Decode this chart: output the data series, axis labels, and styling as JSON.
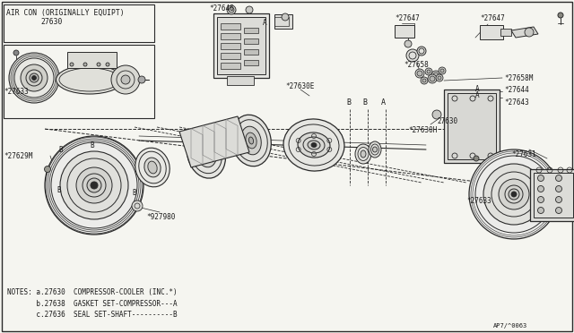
{
  "bg_color": "#f5f5f0",
  "line_color": "#2a2a2a",
  "text_color": "#1a1a1a",
  "title_text": "AIR CON (ORIGINALLY EQUIPT)",
  "title_part": "27630",
  "notes": [
    "NOTES: a.27630  COMPRESSOR-COOLER (INC.*)",
    "       b.27638  GASKET SET-COMPRESSOR---A",
    "       c.27636  SEAL SET-SHAFT----------B"
  ],
  "diagram_ref": "AP7/^0063",
  "figsize": [
    6.4,
    3.72
  ],
  "dpi": 100
}
